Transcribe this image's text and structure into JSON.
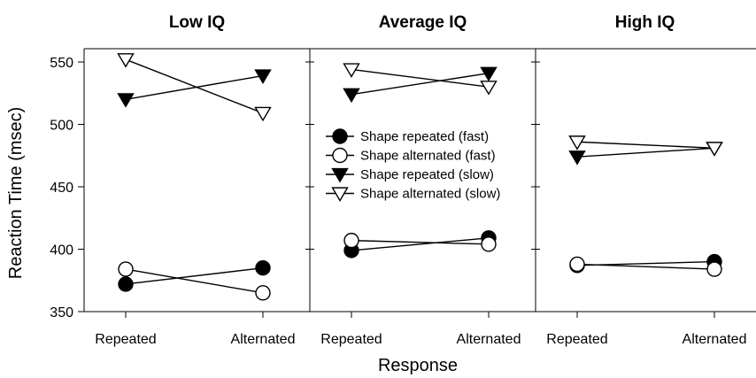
{
  "chart_data": {
    "type": "line",
    "ylabel": "Reaction Time (msec)",
    "xlabel": "Response",
    "ylim": [
      350,
      560
    ],
    "yticks": [
      350,
      400,
      450,
      500,
      550
    ],
    "grid": false,
    "legend_position": "upper-left of middle panel",
    "series_meta": [
      {
        "name": "Shape repeated (fast)",
        "marker": "circle-filled"
      },
      {
        "name": "Shape alternated (fast)",
        "marker": "circle-open"
      },
      {
        "name": "Shape repeated (slow)",
        "marker": "triangle-down-filled"
      },
      {
        "name": "Shape alternated (slow)",
        "marker": "triangle-down-open"
      }
    ],
    "panels": [
      {
        "title": "Low IQ",
        "categories": [
          "Repeated",
          "Alternated"
        ],
        "series": [
          {
            "name": "Shape repeated (fast)",
            "values": [
              372,
              385
            ]
          },
          {
            "name": "Shape alternated (fast)",
            "values": [
              384,
              365
            ]
          },
          {
            "name": "Shape repeated (slow)",
            "values": [
              520,
              539
            ]
          },
          {
            "name": "Shape alternated (slow)",
            "values": [
              552,
              509
            ]
          }
        ]
      },
      {
        "title": "Average IQ",
        "categories": [
          "Repeated",
          "Alternated"
        ],
        "series": [
          {
            "name": "Shape repeated (fast)",
            "values": [
              399,
              409
            ]
          },
          {
            "name": "Shape alternated (fast)",
            "values": [
              407,
              404
            ]
          },
          {
            "name": "Shape repeated (slow)",
            "values": [
              524,
              541
            ]
          },
          {
            "name": "Shape alternated (slow)",
            "values": [
              544,
              530
            ]
          }
        ]
      },
      {
        "title": "High IQ",
        "categories": [
          "Repeated",
          "Alternated"
        ],
        "series": [
          {
            "name": "Shape repeated (fast)",
            "values": [
              387,
              390
            ]
          },
          {
            "name": "Shape alternated (fast)",
            "values": [
              388,
              384
            ]
          },
          {
            "name": "Shape repeated (slow)",
            "values": [
              474,
              481
            ]
          },
          {
            "name": "Shape alternated (slow)",
            "values": [
              486,
              481
            ]
          }
        ]
      }
    ]
  }
}
